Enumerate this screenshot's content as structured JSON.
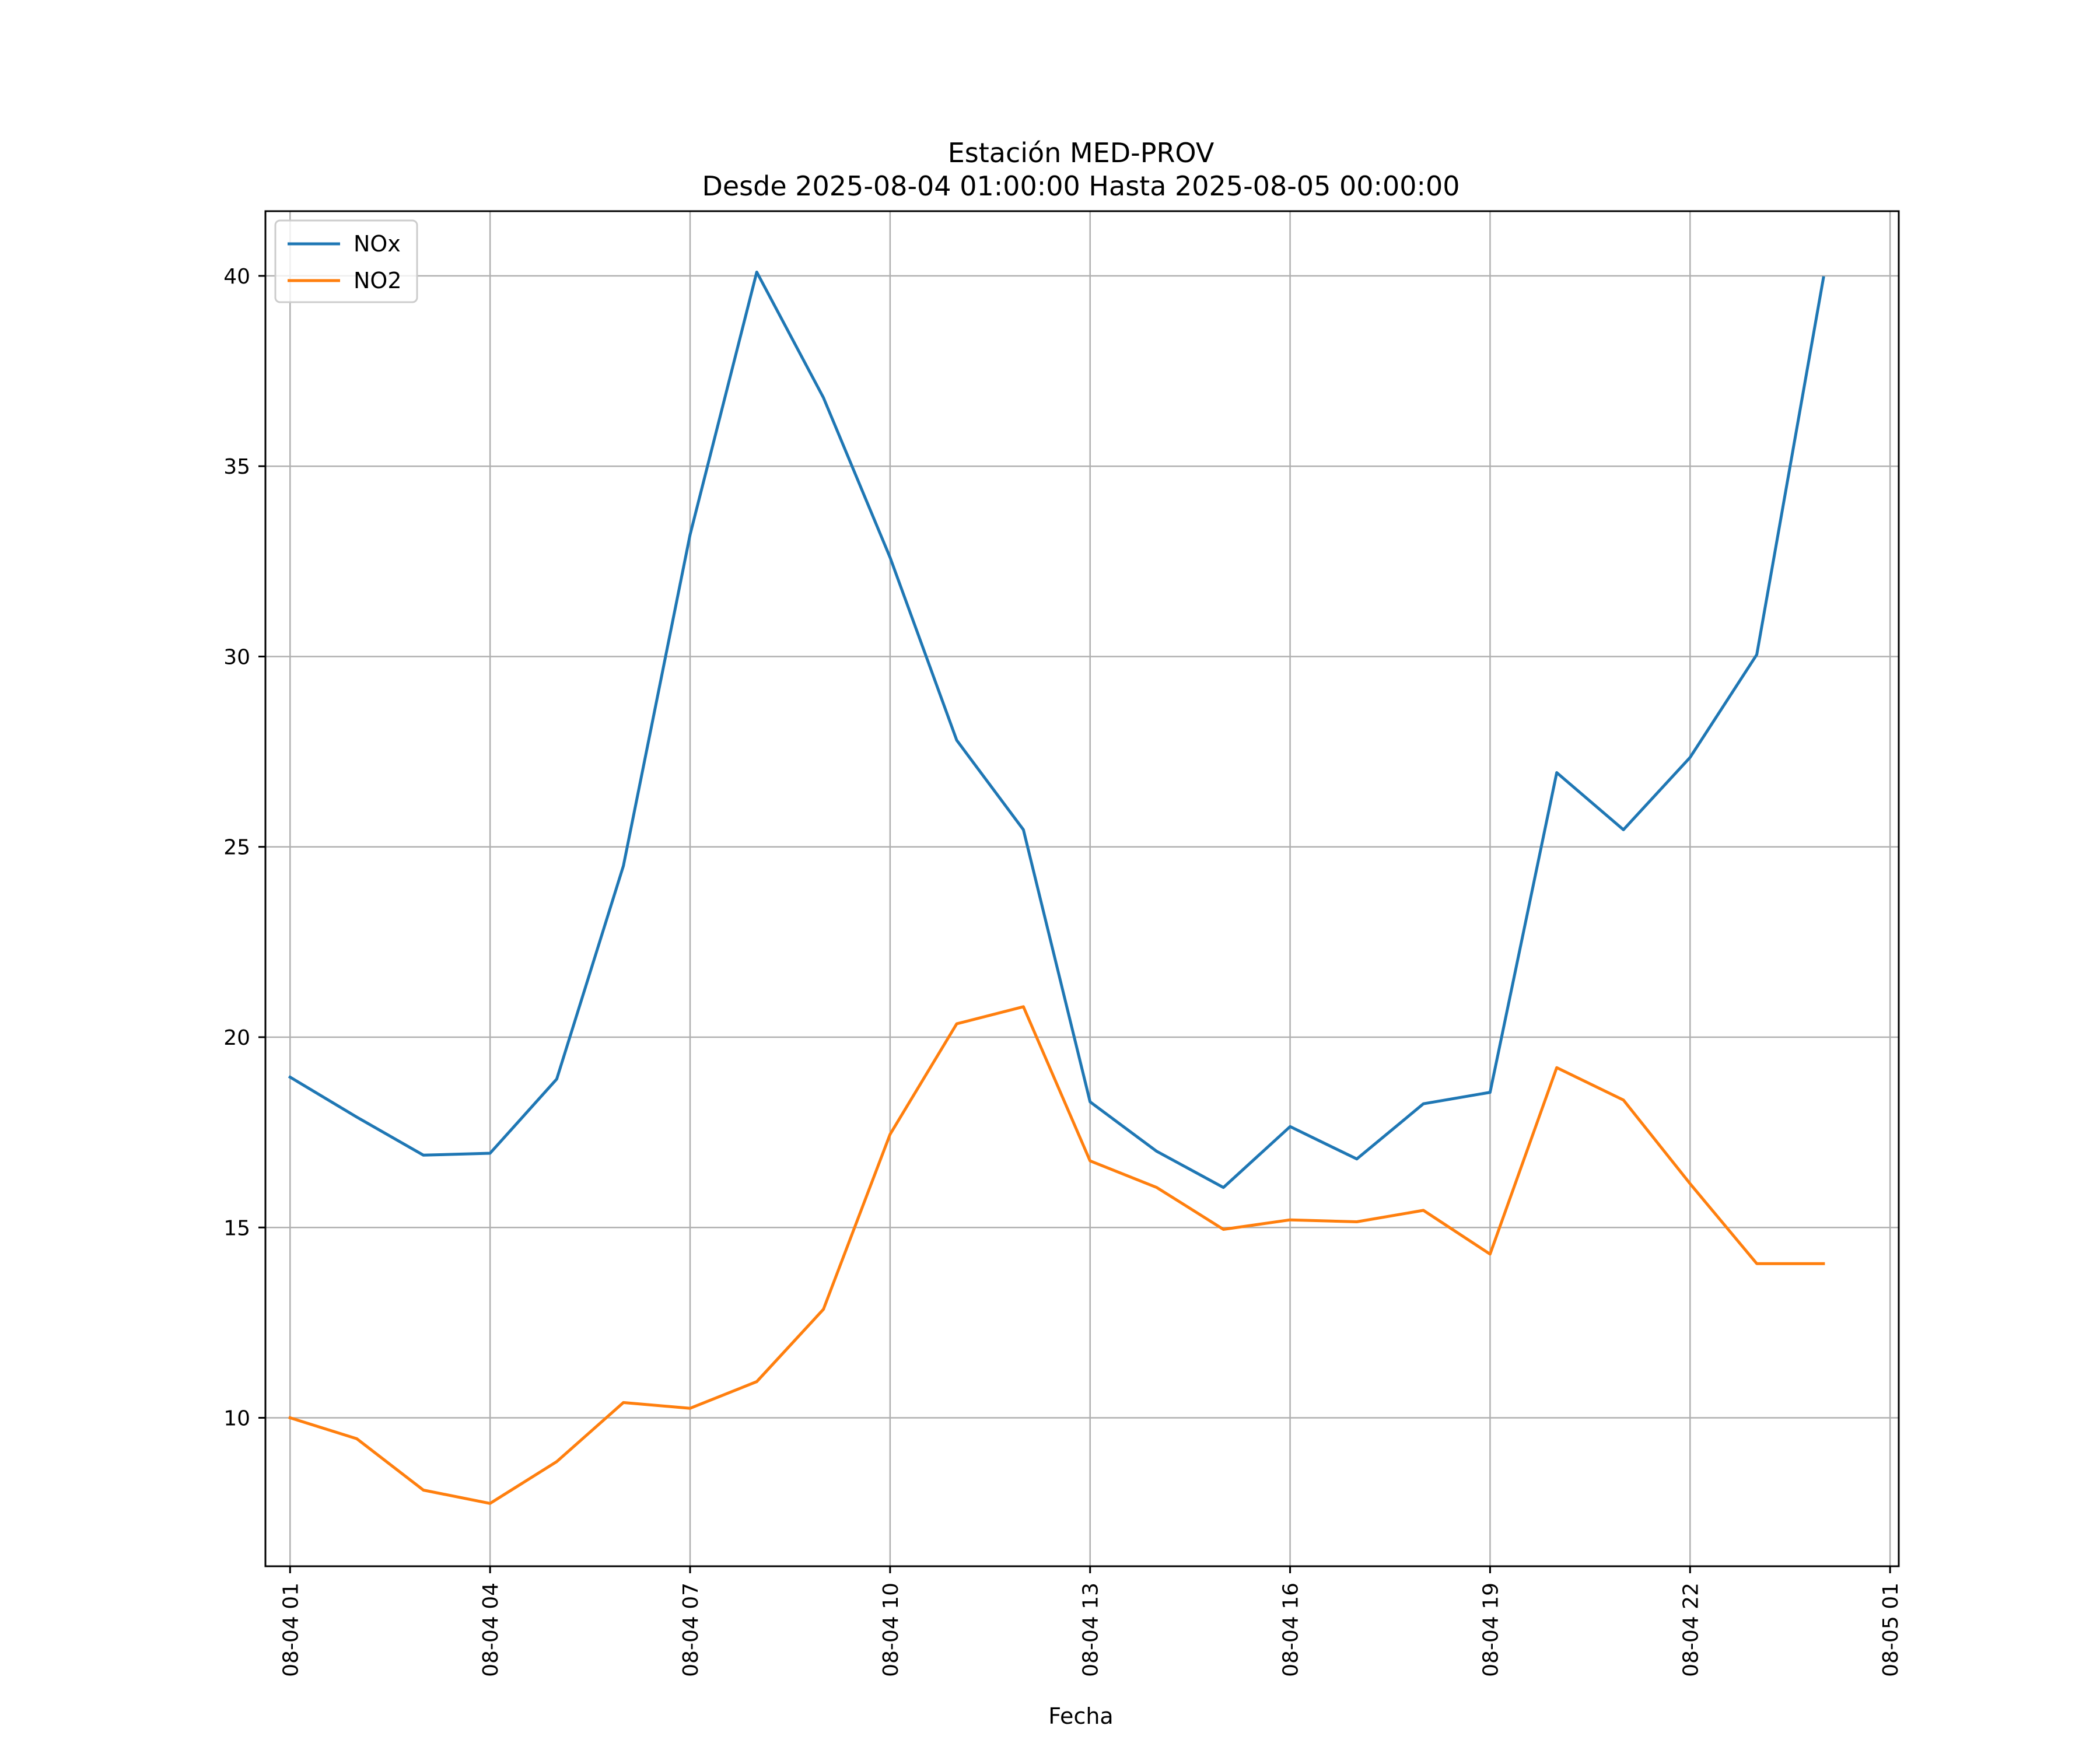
{
  "chart_data": {
    "type": "line",
    "title": "Estación MED-PROV",
    "subtitle": "Desde 2025-08-04 01:00:00 Hasta 2025-08-05 00:00:00",
    "xlabel": "Fecha",
    "ylabel": "",
    "x": [
      "08-04 01",
      "08-04 02",
      "08-04 03",
      "08-04 04",
      "08-04 05",
      "08-04 06",
      "08-04 07",
      "08-04 08",
      "08-04 09",
      "08-04 10",
      "08-04 11",
      "08-04 12",
      "08-04 13",
      "08-04 14",
      "08-04 15",
      "08-04 16",
      "08-04 17",
      "08-04 18",
      "08-04 19",
      "08-04 20",
      "08-04 21",
      "08-04 22",
      "08-04 23",
      "08-05 00"
    ],
    "x_hours": [
      1,
      2,
      3,
      4,
      5,
      6,
      7,
      8,
      9,
      10,
      11,
      12,
      13,
      14,
      15,
      16,
      17,
      18,
      19,
      20,
      21,
      22,
      23,
      24
    ],
    "xlim_hours": [
      0.63,
      25.13
    ],
    "xticks": [
      {
        "hour": 1,
        "label": "08-04 01"
      },
      {
        "hour": 4,
        "label": "08-04 04"
      },
      {
        "hour": 7,
        "label": "08-04 07"
      },
      {
        "hour": 10,
        "label": "08-04 10"
      },
      {
        "hour": 13,
        "label": "08-04 13"
      },
      {
        "hour": 16,
        "label": "08-04 16"
      },
      {
        "hour": 19,
        "label": "08-04 19"
      },
      {
        "hour": 22,
        "label": "08-04 22"
      },
      {
        "hour": 25,
        "label": "08-05 01"
      }
    ],
    "ylim": [
      6.1,
      41.7
    ],
    "yticks": [
      10,
      15,
      20,
      25,
      30,
      35,
      40
    ],
    "grid": true,
    "legend_position": "top-left",
    "series": [
      {
        "name": "NOx",
        "color": "#1f77b4",
        "values": [
          18.95,
          17.9,
          16.9,
          16.95,
          18.9,
          24.5,
          33.2,
          40.1,
          36.8,
          32.6,
          27.8,
          25.45,
          18.3,
          17.0,
          16.05,
          17.65,
          16.8,
          18.25,
          18.55,
          26.95,
          25.45,
          27.35,
          30.05,
          39.95
        ]
      },
      {
        "name": "NO2",
        "color": "#ff7f0e",
        "values": [
          10.0,
          9.45,
          8.1,
          7.75,
          8.85,
          10.4,
          10.25,
          10.95,
          12.85,
          17.45,
          20.35,
          20.8,
          16.75,
          16.05,
          14.95,
          15.2,
          15.15,
          15.45,
          14.3,
          19.2,
          18.35,
          16.15,
          14.05,
          14.05
        ]
      }
    ]
  }
}
